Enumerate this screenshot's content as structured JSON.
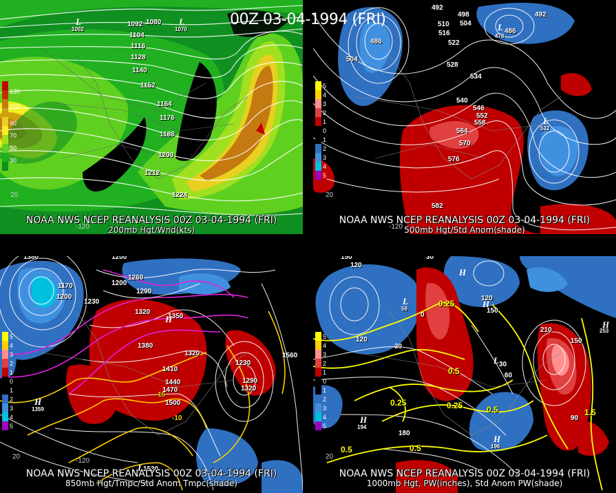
{
  "main_title": "00Z 03-04-1994 (FRI)",
  "panels": [
    {
      "caption_line1": "NOAA NWS NCEP REANALYSIS 00Z 03-04-1994 (FRI)",
      "caption_line2": "200mb Hgt/Wnd(kts)",
      "contour_labels": [
        "1092",
        "1080",
        "1104",
        "1116",
        "1128",
        "1140",
        "1152",
        "1164",
        "1176",
        "1188",
        "1200",
        "1212",
        "1224"
      ],
      "legend_ticks": [
        "130",
        "110",
        "90",
        "70",
        "50",
        "30"
      ],
      "legend_colors": [
        "#c00000",
        "#c03000",
        "#c47a10",
        "#d0a010",
        "#e8d020",
        "#f0f020",
        "#a0e020",
        "#60d020",
        "#20b020",
        "#109020"
      ],
      "lon_labels": [
        "-120",
        "20"
      ],
      "symbols": [
        "L",
        "L"
      ],
      "symbol_values": [
        "1002",
        "1070"
      ]
    },
    {
      "caption_line1": "NOAA NWS NCEP REANALYSIS 00Z 03-04-1994 (FRI)",
      "caption_line2": "500mb Hgt/Std Anom(shade)",
      "contour_labels": [
        "492",
        "498",
        "504",
        "510",
        "516",
        "522",
        "528",
        "534",
        "540",
        "546",
        "552",
        "558",
        "564",
        "570",
        "576",
        "582",
        "486",
        "486",
        "492",
        "504"
      ],
      "legend_ticks": [
        "5",
        "4",
        "3",
        "2",
        "1",
        "0",
        "1",
        "2",
        "3",
        "4",
        "5"
      ],
      "legend_colors": [
        "#ffff00",
        "#ffd000",
        "#ff9090",
        "#e04040",
        "#c00000",
        "#000000",
        "#000000",
        "#3070c0",
        "#4090e0",
        "#00c0e0",
        "#a000c0"
      ],
      "lon_labels": [
        "-120",
        "20"
      ],
      "symbols": [
        "L",
        "L"
      ],
      "symbol_values": [
        "478",
        "532"
      ]
    },
    {
      "caption_line1": "NOAA NWS NCEP REANALYSIS 00Z 03-04-1994 (FRI)",
      "caption_line2": "850mb Hgt/Tmpc/Std Anom Tmpc(shade)",
      "contour_labels": [
        "1380",
        "1200",
        "1170",
        "1200",
        "1230",
        "1200",
        "1290",
        "1260",
        "1320",
        "1350",
        "1380",
        "1410",
        "1440",
        "1470",
        "1500",
        "1320",
        "1230",
        "1290",
        "1320",
        "1560",
        "-15",
        "-10"
      ],
      "legend_ticks": [
        "5",
        "4",
        "3",
        "2",
        "1",
        "0",
        "1",
        "2",
        "3",
        "4",
        "5"
      ],
      "legend_colors": [
        "#ffff00",
        "#ffd000",
        "#ff9090",
        "#e04040",
        "#c00000",
        "#000000",
        "#000000",
        "#3070c0",
        "#4090e0",
        "#00c0e0",
        "#a000c0"
      ],
      "lon_labels": [
        "-120",
        "20"
      ],
      "symbols": [
        "H",
        "H",
        "L"
      ],
      "symbol_values": [
        "1359",
        "1530"
      ]
    },
    {
      "caption_line1": "NOAA NWS NCEP REANALYSIS 00Z 03-04-1994 (FRI)",
      "caption_line2": "1000mb Hgt, PW(inches), Std Anom PW(shade)",
      "contour_labels": [
        "150",
        "120",
        "30",
        "0",
        "120",
        "30",
        "150",
        "120",
        "60",
        "30",
        "90",
        "180",
        "150",
        "210",
        "0.25",
        "0.5",
        "0.25",
        "0.25",
        "0.5",
        "0.5",
        "1.5",
        "0.5"
      ],
      "legend_ticks": [
        "5",
        "4",
        "3",
        "2",
        "1",
        "0",
        "1",
        "2",
        "3",
        "4",
        "5"
      ],
      "legend_colors": [
        "#ffff00",
        "#ffd000",
        "#ff9090",
        "#e04040",
        "#c00000",
        "#000000",
        "#000000",
        "#3070c0",
        "#4090e0",
        "#00c0e0",
        "#a000c0"
      ],
      "lon_labels": [
        "20"
      ],
      "symbols": [
        "H",
        "H",
        "L",
        "L",
        "H",
        "H",
        "H"
      ],
      "symbol_values": [
        "194",
        "196",
        "59",
        "253"
      ]
    }
  ]
}
